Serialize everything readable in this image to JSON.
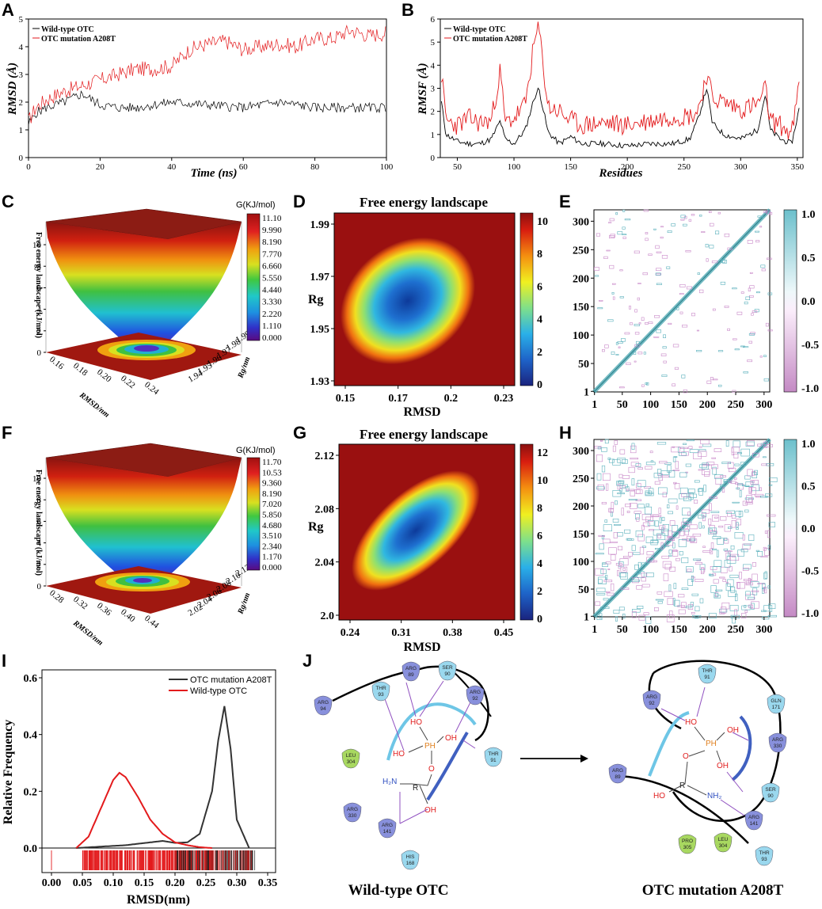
{
  "panels": {
    "A": {
      "label": "A",
      "xlabel": "Time (ns)",
      "ylabel": "RMSD (Å)",
      "xticks": [
        "0",
        "20",
        "40",
        "60",
        "80",
        "100"
      ],
      "yticks": [
        "0",
        "1",
        "2",
        "3",
        "4",
        "5"
      ],
      "legend": [
        "Wild-type OTC",
        "OTC mutation A208T"
      ]
    },
    "B": {
      "label": "B",
      "xlabel": "Residues",
      "ylabel": "RMSF (Å)",
      "xticks": [
        "50",
        "100",
        "150",
        "200",
        "250",
        "300",
        "350"
      ],
      "yticks": [
        "0",
        "1",
        "2",
        "3",
        "4",
        "5",
        "6"
      ],
      "legend": [
        "Wild-type OTC",
        "OTC mutation A208T"
      ]
    },
    "C": {
      "label": "C",
      "zlabel": "Free energy landscape (kJ/mol)",
      "cbar_title": "G(KJ/mol)",
      "cbar_ticks": [
        "11.10",
        "9.990",
        "8.190",
        "7.770",
        "6.660",
        "5.550",
        "4.440",
        "3.330",
        "2.220",
        "1.110",
        "0.000"
      ],
      "zticks": [
        "0",
        "2",
        "4",
        "6",
        "8",
        "10"
      ],
      "xaxis": "RMSD/nm",
      "xticks": [
        "0.16",
        "0.18",
        "0.20",
        "0.22",
        "0.24"
      ],
      "yaxis": "Rg/nm",
      "yticks": [
        "1.94",
        "1.95",
        "1.96",
        "1.97",
        "1.98",
        "1.99"
      ]
    },
    "D": {
      "label": "D",
      "title": "Free energy landscape",
      "xlabel": "RMSD",
      "ylabel": "Rg",
      "xticks": [
        "0.15",
        "0.17",
        "0.2",
        "0.23"
      ],
      "yticks": [
        "1.99",
        "1.97",
        "1.95",
        "1.93"
      ],
      "cbar_ticks": [
        "10",
        "8",
        "6",
        "4",
        "2",
        "0"
      ]
    },
    "E": {
      "label": "E",
      "xticks": [
        "1",
        "50",
        "100",
        "150",
        "200",
        "250",
        "300"
      ],
      "yticks": [
        "300",
        "250",
        "200",
        "150",
        "100",
        "50",
        "1"
      ],
      "cbar_ticks": [
        "1.0",
        "0.5",
        "0.0",
        "-0.5",
        "-1.0"
      ]
    },
    "F": {
      "label": "F",
      "zlabel": "Free energy landscape (kJ/mol)",
      "cbar_title": "G(KJ/mol)",
      "cbar_ticks": [
        "11.70",
        "10.53",
        "9.360",
        "8.190",
        "7.020",
        "5.850",
        "4.680",
        "3.510",
        "2.340",
        "1.170",
        "0.000"
      ],
      "zticks": [
        "0",
        "2",
        "4",
        "6",
        "8",
        "10"
      ],
      "xaxis": "RMSD/nm",
      "xticks": [
        "0.28",
        "0.32",
        "0.36",
        "0.40",
        "0.44"
      ],
      "yaxis": "Rg/nm",
      "yticks": [
        "2.02",
        "2.04",
        "2.06",
        "2.08",
        "2.10",
        "2.12"
      ]
    },
    "G": {
      "label": "G",
      "title": "Free energy landscape",
      "xlabel": "RMSD",
      "ylabel": "Rg",
      "xticks": [
        "0.24",
        "0.31",
        "0.38",
        "0.45"
      ],
      "yticks": [
        "2.12",
        "2.08",
        "2.04",
        "2.0"
      ],
      "cbar_ticks": [
        "12",
        "10",
        "8",
        "6",
        "4",
        "2",
        "0"
      ]
    },
    "H": {
      "label": "H",
      "xticks": [
        "1",
        "50",
        "100",
        "150",
        "200",
        "250",
        "300"
      ],
      "yticks": [
        "300",
        "250",
        "200",
        "150",
        "100",
        "50",
        "1"
      ],
      "cbar_ticks": [
        "1.0",
        "0.5",
        "0.0",
        "-0.5",
        "-1.0"
      ]
    },
    "I": {
      "label": "I",
      "xlabel": "RMSD(nm)",
      "ylabel": "Relative Frequency",
      "xticks": [
        "0.00",
        "0.05",
        "0.10",
        "0.15",
        "0.20",
        "0.25",
        "0.30",
        "0.35"
      ],
      "yticks": [
        "0.6",
        "0.4",
        "0.2",
        "0.0"
      ],
      "legend": [
        "OTC mutation A208T",
        "Wild-type OTC"
      ]
    },
    "J": {
      "label": "J",
      "caption_left": "Wild-type OTC",
      "caption_right": "OTC mutation A208T",
      "left_residues": [
        {
          "name": "ARG",
          "num": "89"
        },
        {
          "name": "SER",
          "num": "90"
        },
        {
          "name": "THR",
          "num": "93"
        },
        {
          "name": "ARG",
          "num": "92"
        },
        {
          "name": "ARG",
          "num": "94"
        },
        {
          "name": "LEU",
          "num": "304"
        },
        {
          "name": "THR",
          "num": "91"
        },
        {
          "name": "ARG",
          "num": "330"
        },
        {
          "name": "ARG",
          "num": "141"
        },
        {
          "name": "HIS",
          "num": "168"
        }
      ],
      "right_residues": [
        {
          "name": "THR",
          "num": "91"
        },
        {
          "name": "ARG",
          "num": "92"
        },
        {
          "name": "GLN",
          "num": "171"
        },
        {
          "name": "ARG",
          "num": "330"
        },
        {
          "name": "ARG",
          "num": "89"
        },
        {
          "name": "SER",
          "num": "90"
        },
        {
          "name": "ARG",
          "num": "141"
        },
        {
          "name": "PRO",
          "num": "305"
        },
        {
          "name": "LEU",
          "num": "304"
        },
        {
          "name": "THR",
          "num": "93"
        }
      ],
      "atoms": {
        "ho": "HO",
        "oh": "OH",
        "ph": "PH",
        "o": "O",
        "h2n": "H₂N",
        "nh2": "NH₂",
        "r": "R"
      }
    }
  },
  "chart_data": [
    {
      "type": "line",
      "panel": "A",
      "title": "",
      "xlabel": "Time (ns)",
      "ylabel": "RMSD (Å)",
      "xlim": [
        0,
        100
      ],
      "ylim": [
        0,
        5
      ],
      "series": [
        {
          "name": "Wild-type OTC",
          "color": "#000000",
          "x": [
            0,
            2,
            5,
            10,
            15,
            20,
            25,
            30,
            40,
            50,
            60,
            70,
            80,
            90,
            100
          ],
          "values": [
            1.2,
            1.6,
            1.8,
            2.0,
            2.3,
            1.9,
            1.8,
            1.8,
            2.0,
            1.9,
            1.8,
            2.0,
            1.8,
            1.8,
            1.8
          ]
        },
        {
          "name": "OTC mutation A208T",
          "color": "#e31a1c",
          "x": [
            0,
            2,
            5,
            10,
            15,
            20,
            25,
            30,
            35,
            40,
            45,
            50,
            55,
            60,
            65,
            70,
            75,
            80,
            85,
            90,
            95,
            100
          ],
          "values": [
            1.3,
            1.8,
            2.1,
            2.4,
            2.6,
            2.8,
            3.0,
            3.2,
            3.2,
            3.3,
            3.9,
            4.1,
            4.2,
            3.9,
            4.0,
            4.1,
            4.0,
            4.3,
            4.3,
            4.6,
            4.4,
            4.5
          ]
        }
      ]
    },
    {
      "type": "line",
      "panel": "B",
      "title": "",
      "xlabel": "Residues",
      "ylabel": "RMSF (Å)",
      "xlim": [
        35,
        355
      ],
      "ylim": [
        0,
        6
      ],
      "series": [
        {
          "name": "Wild-type OTC",
          "color": "#000000",
          "x": [
            36,
            40,
            50,
            60,
            70,
            80,
            88,
            92,
            100,
            110,
            118,
            122,
            130,
            140,
            150,
            160,
            180,
            200,
            220,
            240,
            255,
            262,
            270,
            275,
            285,
            300,
            315,
            322,
            326,
            335,
            345,
            352
          ],
          "values": [
            2.4,
            1.0,
            0.7,
            0.6,
            0.6,
            0.8,
            1.6,
            0.8,
            0.6,
            1.2,
            2.6,
            3.0,
            1.1,
            0.6,
            0.9,
            0.6,
            0.6,
            0.5,
            0.6,
            0.6,
            0.8,
            1.6,
            3.0,
            1.5,
            1.0,
            0.8,
            1.2,
            2.8,
            1.2,
            0.8,
            0.6,
            2.2
          ]
        },
        {
          "name": "OTC mutation A208T",
          "color": "#e31a1c",
          "x": [
            36,
            40,
            50,
            60,
            70,
            80,
            88,
            92,
            100,
            110,
            118,
            122,
            130,
            140,
            150,
            160,
            180,
            200,
            220,
            240,
            255,
            262,
            270,
            275,
            285,
            300,
            315,
            322,
            326,
            335,
            345,
            352
          ],
          "values": [
            3.6,
            1.6,
            1.4,
            1.7,
            1.5,
            1.6,
            3.8,
            1.5,
            1.7,
            2.3,
            5.0,
            5.6,
            2.2,
            2.0,
            1.6,
            1.4,
            1.5,
            1.4,
            1.6,
            1.8,
            1.8,
            2.0,
            3.6,
            2.6,
            2.4,
            2.1,
            2.3,
            3.0,
            1.6,
            1.4,
            1.0,
            3.2
          ]
        }
      ]
    },
    {
      "type": "area",
      "panel": "I",
      "title": "",
      "xlabel": "RMSD(nm)",
      "ylabel": "Relative Frequency",
      "xlim": [
        0,
        0.35
      ],
      "ylim": [
        0,
        0.6
      ],
      "series": [
        {
          "name": "OTC mutation A208T",
          "color": "#333333",
          "x": [
            0.04,
            0.08,
            0.12,
            0.16,
            0.18,
            0.2,
            0.22,
            0.24,
            0.26,
            0.27,
            0.28,
            0.29,
            0.3,
            0.32
          ],
          "values": [
            0,
            0.005,
            0.01,
            0.02,
            0.025,
            0.018,
            0.02,
            0.05,
            0.2,
            0.38,
            0.5,
            0.35,
            0.1,
            0
          ]
        },
        {
          "name": "Wild-type OTC",
          "color": "#e31a1c",
          "x": [
            0.04,
            0.06,
            0.08,
            0.1,
            0.11,
            0.12,
            0.14,
            0.16,
            0.18,
            0.2,
            0.22,
            0.24,
            0.26
          ],
          "values": [
            0,
            0.04,
            0.14,
            0.24,
            0.265,
            0.25,
            0.18,
            0.1,
            0.05,
            0.02,
            0.01,
            0.003,
            0
          ]
        }
      ]
    }
  ]
}
